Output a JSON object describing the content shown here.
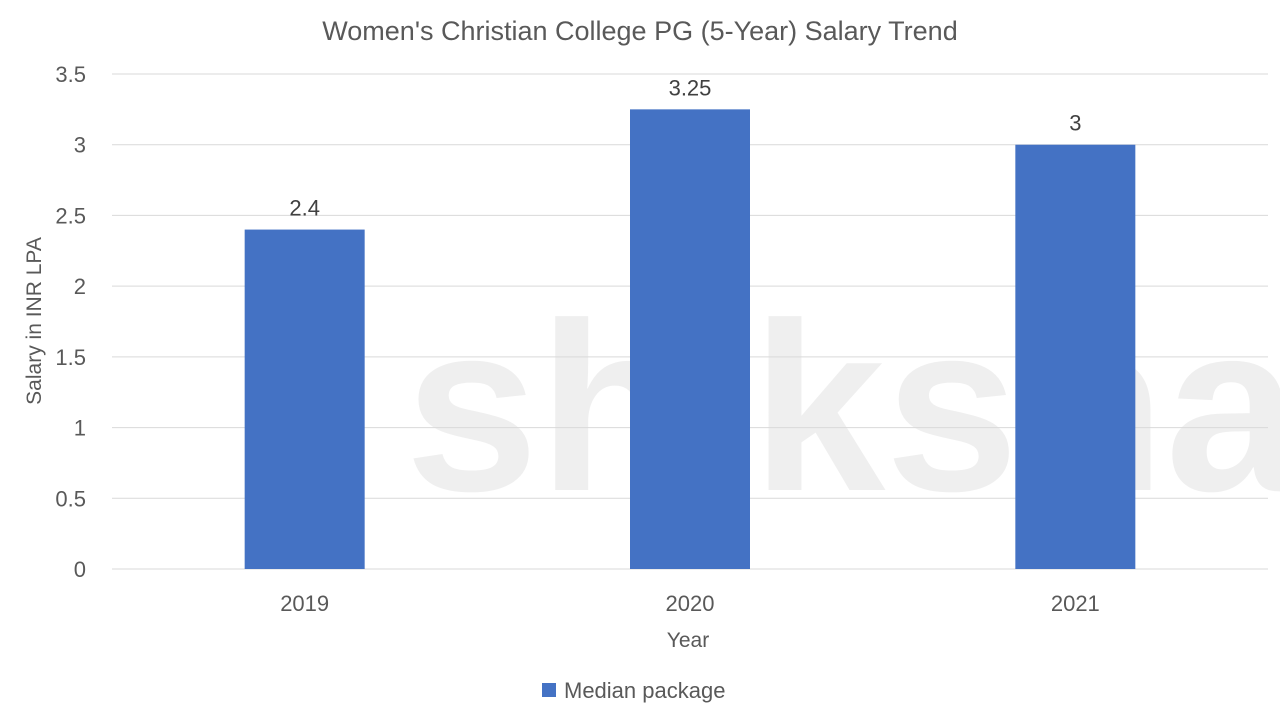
{
  "chart_data": {
    "type": "bar",
    "title": "Women's Christian College PG (5-Year) Salary Trend",
    "xlabel": "Year",
    "ylabel": "Salary in INR LPA",
    "categories": [
      "2019",
      "2020",
      "2021"
    ],
    "series": [
      {
        "name": "Median package",
        "values": [
          2.4,
          3.25,
          3
        ],
        "color": "#4472C4"
      }
    ],
    "data_labels": [
      "2.4",
      "3.25",
      "3"
    ],
    "ylim": [
      0,
      3.5
    ],
    "yticks": [
      0,
      0.5,
      1,
      1.5,
      2,
      2.5,
      3,
      3.5
    ],
    "ytick_labels": [
      "0",
      "0.5",
      "1",
      "1.5",
      "2",
      "2.5",
      "3",
      "3.5"
    ],
    "grid": true,
    "legend_position": "bottom"
  },
  "watermark": "shiksha"
}
